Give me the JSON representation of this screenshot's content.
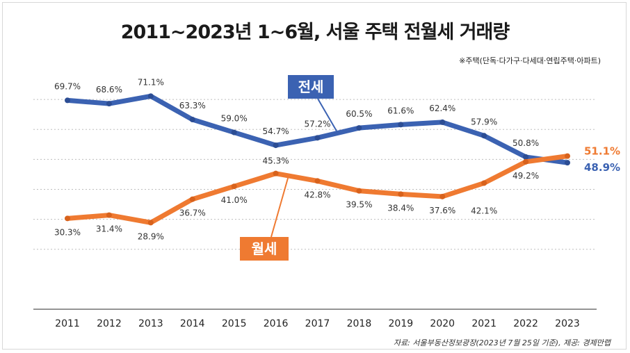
{
  "title": "2011~2023년 1~6월, 서울 주택 전월세 거래량",
  "subtitle": "※주택(단독·다가구·다세대·연립주택·아파트)",
  "source": "자료: 서울부동산정보광장(2023년 7월 25일 기준), 제공: 경제만랩",
  "colors": {
    "jeonse": "#3b62b2",
    "wolse": "#ef7a31",
    "grid": "#bdbdbd",
    "axis": "#555555"
  },
  "chart_data": {
    "type": "line",
    "title": "2011~2023년 1~6월, 서울 주택 전월세 거래량",
    "xlabel": "",
    "ylabel": "",
    "ylim": [
      0,
      80
    ],
    "categories": [
      "2011",
      "2012",
      "2013",
      "2014",
      "2015",
      "2016",
      "2017",
      "2018",
      "2019",
      "2020",
      "2021",
      "2022",
      "2023"
    ],
    "series": [
      {
        "name": "전세",
        "values": [
          69.7,
          68.6,
          71.1,
          63.3,
          59.0,
          54.7,
          57.2,
          60.5,
          61.6,
          62.4,
          57.9,
          50.8,
          48.9
        ],
        "labels": [
          "69.7%",
          "68.6%",
          "71.1%",
          "63.3%",
          "59.0%",
          "54.7%",
          "57.2%",
          "60.5%",
          "61.6%",
          "62.4%",
          "57.9%",
          "50.8%",
          "48.9%"
        ]
      },
      {
        "name": "월세",
        "values": [
          30.3,
          31.4,
          28.9,
          36.7,
          41.0,
          45.3,
          42.8,
          39.5,
          38.4,
          37.6,
          42.1,
          49.2,
          51.1
        ],
        "labels": [
          "30.3%",
          "31.4%",
          "28.9%",
          "36.7%",
          "41.0%",
          "45.3%",
          "42.8%",
          "39.5%",
          "38.4%",
          "37.6%",
          "42.1%",
          "49.2%",
          "51.1%"
        ]
      }
    ]
  }
}
